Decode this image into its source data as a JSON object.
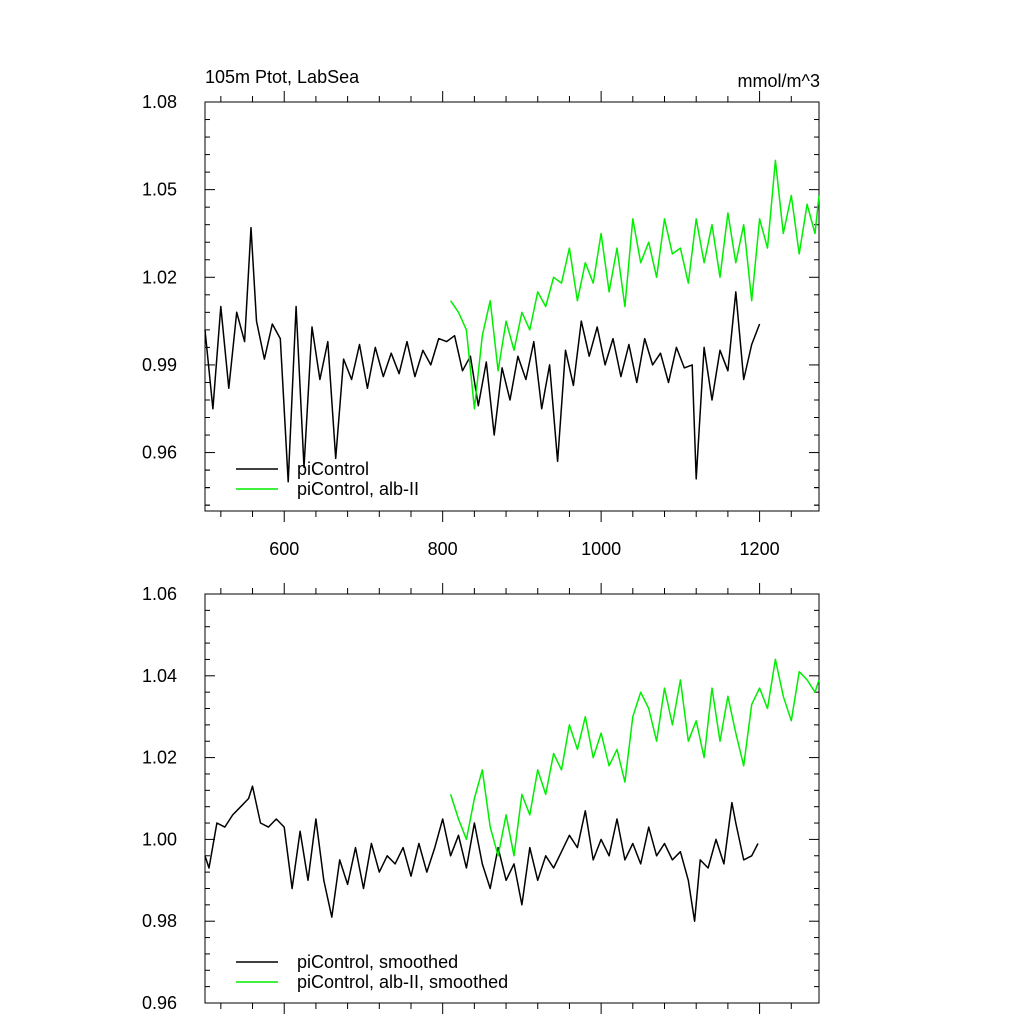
{
  "chart_data": [
    {
      "type": "line",
      "title": "105m Ptot, LabSea",
      "units": "mmol/m^3",
      "xlim": [
        500,
        1275
      ],
      "ylim": [
        0.94,
        1.08
      ],
      "xticks": [
        600,
        800,
        1000,
        1200
      ],
      "yticks": [
        0.96,
        0.99,
        1.02,
        1.05,
        1.08
      ],
      "ytick_labels": [
        "0.96",
        "0.99",
        "1.02",
        "1.05",
        "1.08"
      ],
      "xtick_labels": [
        "600",
        "800",
        "1000",
        "1200"
      ],
      "legend_position": "bottom-left",
      "series": [
        {
          "name": "piControl",
          "color": "#000000",
          "x": [
            500,
            510,
            520,
            530,
            540,
            550,
            558,
            565,
            575,
            585,
            595,
            605,
            615,
            625,
            635,
            645,
            655,
            665,
            675,
            685,
            695,
            705,
            715,
            725,
            735,
            745,
            755,
            765,
            775,
            785,
            795,
            805,
            815,
            825,
            835,
            845,
            855,
            865,
            875,
            885,
            895,
            905,
            915,
            925,
            935,
            945,
            955,
            965,
            975,
            985,
            995,
            1005,
            1015,
            1025,
            1035,
            1045,
            1055,
            1065,
            1075,
            1085,
            1095,
            1105,
            1115,
            1120,
            1130,
            1140,
            1150,
            1160,
            1170,
            1180,
            1190,
            1200
          ],
          "y": [
            1.002,
            0.975,
            1.01,
            0.982,
            1.008,
            0.998,
            1.037,
            1.005,
            0.992,
            1.004,
            0.999,
            0.95,
            1.01,
            0.955,
            1.003,
            0.985,
            0.998,
            0.958,
            0.992,
            0.985,
            0.997,
            0.982,
            0.996,
            0.986,
            0.994,
            0.987,
            0.998,
            0.986,
            0.995,
            0.99,
            0.999,
            0.998,
            1.0,
            0.988,
            0.993,
            0.976,
            0.991,
            0.966,
            0.989,
            0.978,
            0.993,
            0.985,
            0.998,
            0.975,
            0.99,
            0.957,
            0.995,
            0.983,
            1.005,
            0.993,
            1.003,
            0.99,
            0.999,
            0.986,
            0.997,
            0.984,
            0.999,
            0.99,
            0.994,
            0.984,
            0.996,
            0.989,
            0.99,
            0.951,
            0.996,
            0.978,
            0.995,
            0.988,
            1.015,
            0.985,
            0.997,
            1.004
          ]
        },
        {
          "name": "piControl, alb-II",
          "color": "#00ee00",
          "x": [
            810,
            820,
            830,
            840,
            850,
            860,
            870,
            880,
            890,
            900,
            910,
            920,
            930,
            940,
            950,
            960,
            970,
            980,
            990,
            1000,
            1010,
            1020,
            1030,
            1040,
            1050,
            1060,
            1070,
            1080,
            1090,
            1100,
            1110,
            1120,
            1130,
            1140,
            1150,
            1160,
            1170,
            1180,
            1190,
            1200,
            1210,
            1220,
            1230,
            1240,
            1250,
            1260,
            1270,
            1275
          ],
          "y": [
            1.012,
            1.008,
            1.002,
            0.975,
            1.0,
            1.012,
            0.988,
            1.005,
            0.995,
            1.008,
            1.002,
            1.015,
            1.01,
            1.02,
            1.018,
            1.03,
            1.012,
            1.025,
            1.018,
            1.035,
            1.015,
            1.03,
            1.01,
            1.04,
            1.025,
            1.032,
            1.02,
            1.04,
            1.028,
            1.03,
            1.018,
            1.04,
            1.025,
            1.038,
            1.02,
            1.042,
            1.025,
            1.038,
            1.012,
            1.04,
            1.03,
            1.06,
            1.035,
            1.048,
            1.028,
            1.045,
            1.035,
            1.048
          ]
        }
      ]
    },
    {
      "type": "line",
      "xlim": [
        500,
        1275
      ],
      "ylim": [
        0.96,
        1.06
      ],
      "xticks": [
        600,
        800,
        1000,
        1200
      ],
      "yticks": [
        0.96,
        0.98,
        1.0,
        1.02,
        1.04,
        1.06
      ],
      "ytick_labels": [
        "0.96",
        "0.98",
        "1.00",
        "1.02",
        "1.04",
        "1.06"
      ],
      "legend_position": "bottom-left",
      "series": [
        {
          "name": "piControl, smoothed",
          "color": "#000000",
          "x": [
            500,
            505,
            515,
            525,
            535,
            545,
            555,
            560,
            570,
            580,
            590,
            600,
            610,
            620,
            630,
            640,
            650,
            660,
            670,
            680,
            690,
            700,
            710,
            720,
            730,
            740,
            750,
            760,
            770,
            780,
            790,
            800,
            810,
            820,
            830,
            840,
            850,
            860,
            870,
            880,
            890,
            900,
            910,
            920,
            930,
            940,
            950,
            960,
            970,
            980,
            990,
            1000,
            1010,
            1020,
            1030,
            1040,
            1050,
            1060,
            1070,
            1080,
            1090,
            1100,
            1110,
            1118,
            1125,
            1135,
            1145,
            1155,
            1165,
            1170,
            1180,
            1190,
            1198
          ],
          "y": [
            0.996,
            0.993,
            1.004,
            1.003,
            1.006,
            1.008,
            1.01,
            1.013,
            1.004,
            1.003,
            1.005,
            1.003,
            0.988,
            1.002,
            0.99,
            1.005,
            0.99,
            0.981,
            0.995,
            0.989,
            0.998,
            0.988,
            0.999,
            0.992,
            0.996,
            0.994,
            0.998,
            0.991,
            0.999,
            0.992,
            0.998,
            1.005,
            0.996,
            1.001,
            0.993,
            1.004,
            0.994,
            0.988,
            0.998,
            0.99,
            0.994,
            0.984,
            0.998,
            0.99,
            0.996,
            0.993,
            0.997,
            1.001,
            0.998,
            1.007,
            0.995,
            1.0,
            0.996,
            1.005,
            0.995,
            0.999,
            0.994,
            1.003,
            0.996,
            0.999,
            0.995,
            0.997,
            0.99,
            0.98,
            0.995,
            0.993,
            1.0,
            0.994,
            1.009,
            1.004,
            0.995,
            0.996,
            0.999
          ]
        },
        {
          "name": "piControl, alb-II, smoothed",
          "color": "#00ee00",
          "x": [
            810,
            820,
            830,
            840,
            850,
            860,
            870,
            880,
            890,
            900,
            910,
            920,
            930,
            940,
            950,
            960,
            970,
            980,
            990,
            1000,
            1010,
            1020,
            1030,
            1040,
            1050,
            1060,
            1070,
            1080,
            1090,
            1100,
            1110,
            1120,
            1130,
            1140,
            1150,
            1160,
            1170,
            1180,
            1190,
            1200,
            1210,
            1220,
            1230,
            1240,
            1250,
            1260,
            1270,
            1275
          ],
          "y": [
            1.011,
            1.005,
            1.0,
            1.01,
            1.017,
            1.003,
            0.996,
            1.006,
            0.996,
            1.011,
            1.006,
            1.017,
            1.011,
            1.021,
            1.017,
            1.028,
            1.022,
            1.03,
            1.02,
            1.026,
            1.018,
            1.022,
            1.014,
            1.03,
            1.036,
            1.032,
            1.024,
            1.037,
            1.028,
            1.039,
            1.024,
            1.029,
            1.02,
            1.037,
            1.024,
            1.035,
            1.026,
            1.018,
            1.033,
            1.037,
            1.032,
            1.044,
            1.035,
            1.029,
            1.041,
            1.039,
            1.036,
            1.039
          ]
        }
      ]
    }
  ]
}
